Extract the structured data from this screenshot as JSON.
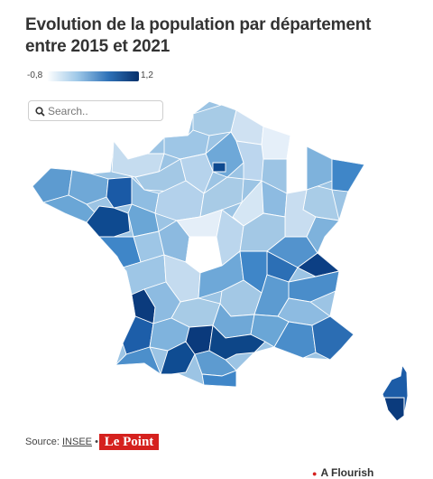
{
  "title": "Evolution de la population par département entre 2015 et 2021",
  "legend": {
    "min": "-0,8",
    "max": "1,2"
  },
  "search": {
    "placeholder": "Search.."
  },
  "source": {
    "prefix": "Source:",
    "link": "INSEE",
    "separator": "•"
  },
  "logo": "Le Point",
  "credit": "A Flourish",
  "colors": {
    "low": "#ffffff",
    "mid": "#6aa6d6",
    "high": "#08306b",
    "brand": "#d5211e"
  }
}
